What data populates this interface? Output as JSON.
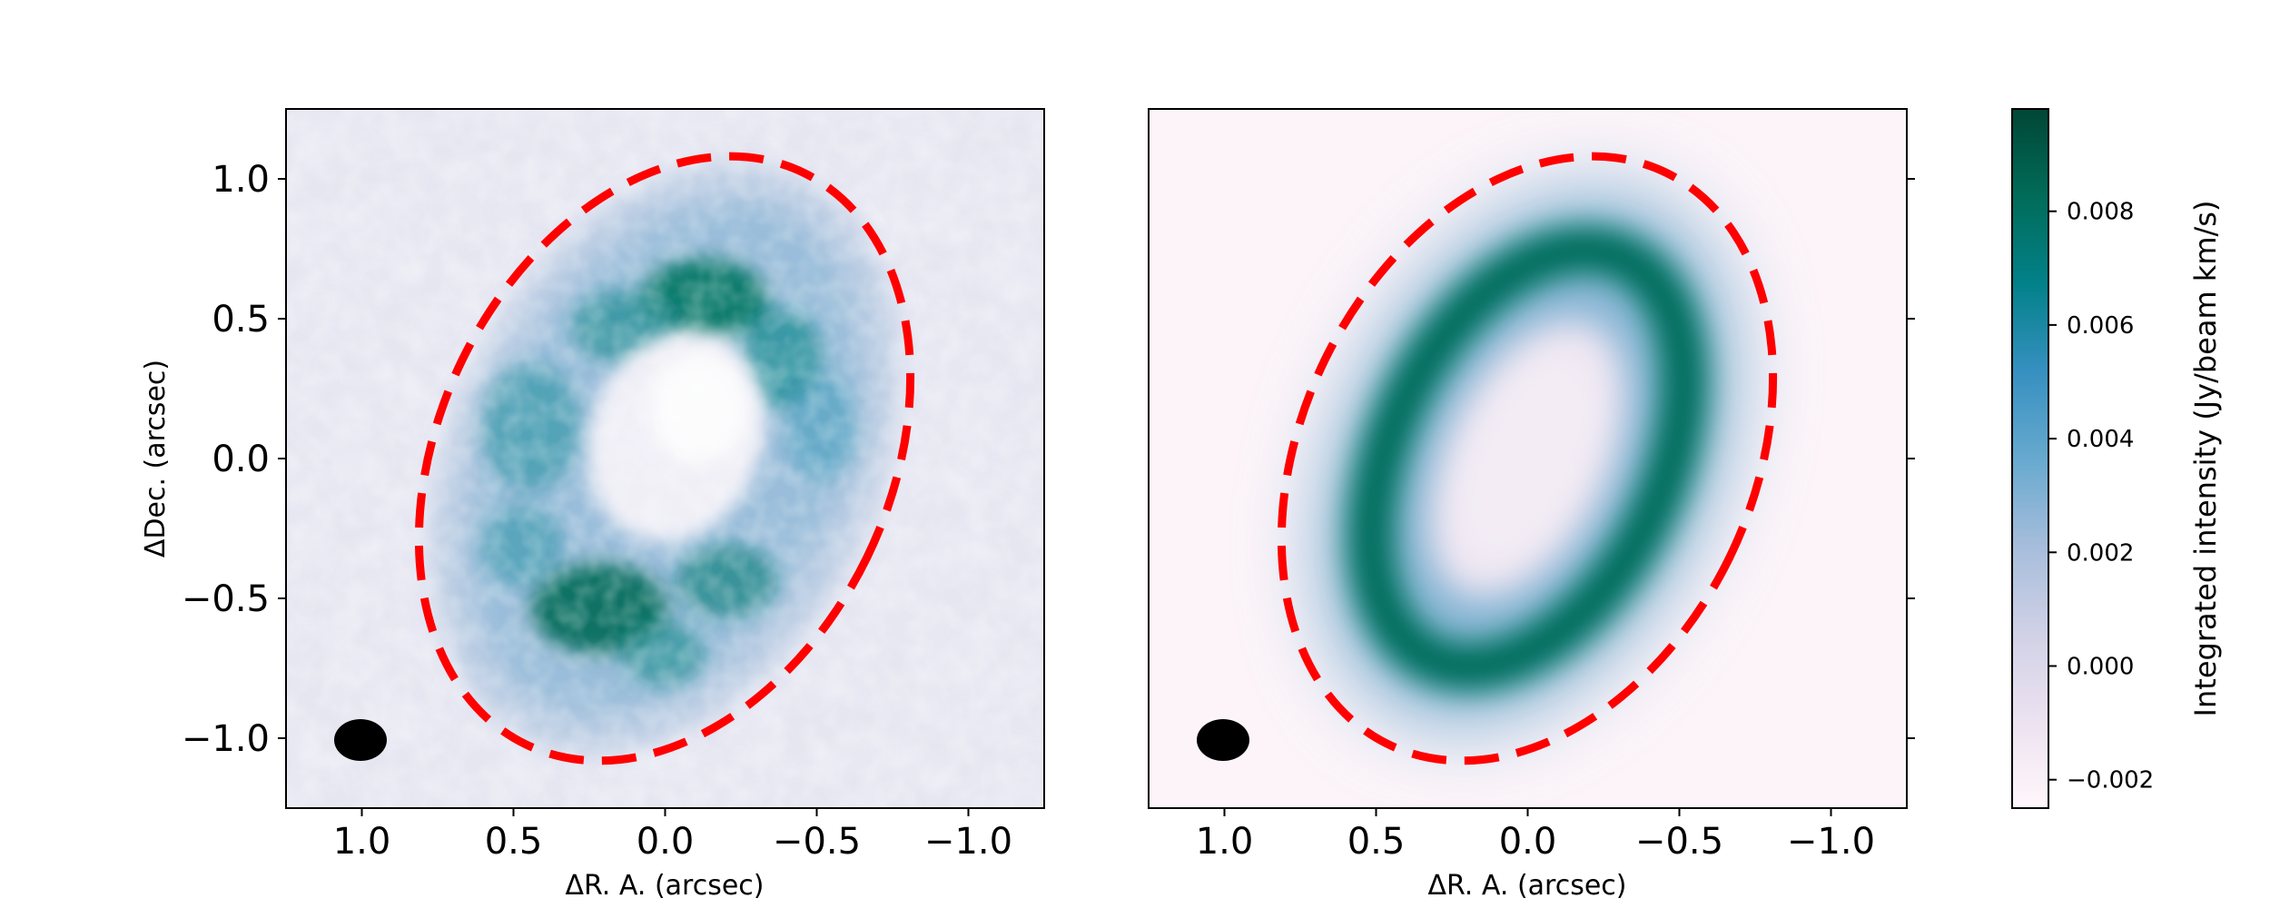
{
  "chart_data": [
    {
      "type": "heatmap",
      "panel": "observed",
      "xlabel": "ΔR. A.  (arcsec)",
      "ylabel": "ΔDec.  (arcsec)",
      "xlim": [
        1.25,
        -1.25
      ],
      "ylim": [
        -1.25,
        1.25
      ],
      "xticks": [
        1.0,
        0.5,
        0.0,
        -0.5,
        -1.0
      ],
      "xtick_labels": [
        "1.0",
        "0.5",
        "0.0",
        "−0.5",
        "−1.0"
      ],
      "yticks": [
        1.0,
        0.5,
        0.0,
        -0.5,
        -1.0
      ],
      "ytick_labels": [
        "1.0",
        "0.5",
        "0.0",
        "−0.5",
        "−1.0"
      ],
      "show_ylabels": true,
      "emission": "noisy ring, peaks near (0.1, 0.6) and (0.2, -0.5)",
      "ellipse": {
        "center": [
          0.0,
          0.0
        ],
        "semi_major": 1.12,
        "semi_minor": 0.75,
        "pa_deg": 26,
        "color": "#ff0000",
        "style": "dashed"
      },
      "beam": {
        "center": [
          1.0,
          -1.0
        ],
        "major": 0.17,
        "minor": 0.14,
        "color": "#000000"
      }
    },
    {
      "type": "heatmap",
      "panel": "model",
      "xlabel": "ΔR. A.  (arcsec)",
      "ylabel": "",
      "xlim": [
        1.25,
        -1.25
      ],
      "ylim": [
        -1.25,
        1.25
      ],
      "xticks": [
        1.0,
        0.5,
        0.0,
        -0.5,
        -1.0
      ],
      "xtick_labels": [
        "1.0",
        "0.5",
        "0.0",
        "−0.5",
        "−1.0"
      ],
      "yticks": [
        1.0,
        0.5,
        0.0,
        -0.5,
        -1.0
      ],
      "show_ylabels": false,
      "emission": "smooth inclined ring",
      "ellipse": {
        "center": [
          0.0,
          0.0
        ],
        "semi_major": 1.12,
        "semi_minor": 0.75,
        "pa_deg": 26,
        "color": "#ff0000",
        "style": "dashed"
      },
      "beam": {
        "center": [
          1.0,
          -1.0
        ],
        "major": 0.17,
        "minor": 0.14,
        "color": "#000000"
      }
    }
  ],
  "colorbar": {
    "label": "Integrated intensity (Jy/beam km/s)",
    "range": [
      -0.0025,
      0.0098
    ],
    "ticks": [
      -0.002,
      0.0,
      0.002,
      0.004,
      0.006,
      0.008
    ],
    "tick_labels": [
      "−0.002",
      "0.000",
      "0.002",
      "0.004",
      "0.006",
      "0.008"
    ],
    "colormap": "PuBuGn",
    "stops": [
      "#fff7fb",
      "#ece2f0",
      "#d0d1e6",
      "#a6bddb",
      "#67a9cf",
      "#3690c0",
      "#02818a",
      "#016c59",
      "#014636"
    ]
  }
}
